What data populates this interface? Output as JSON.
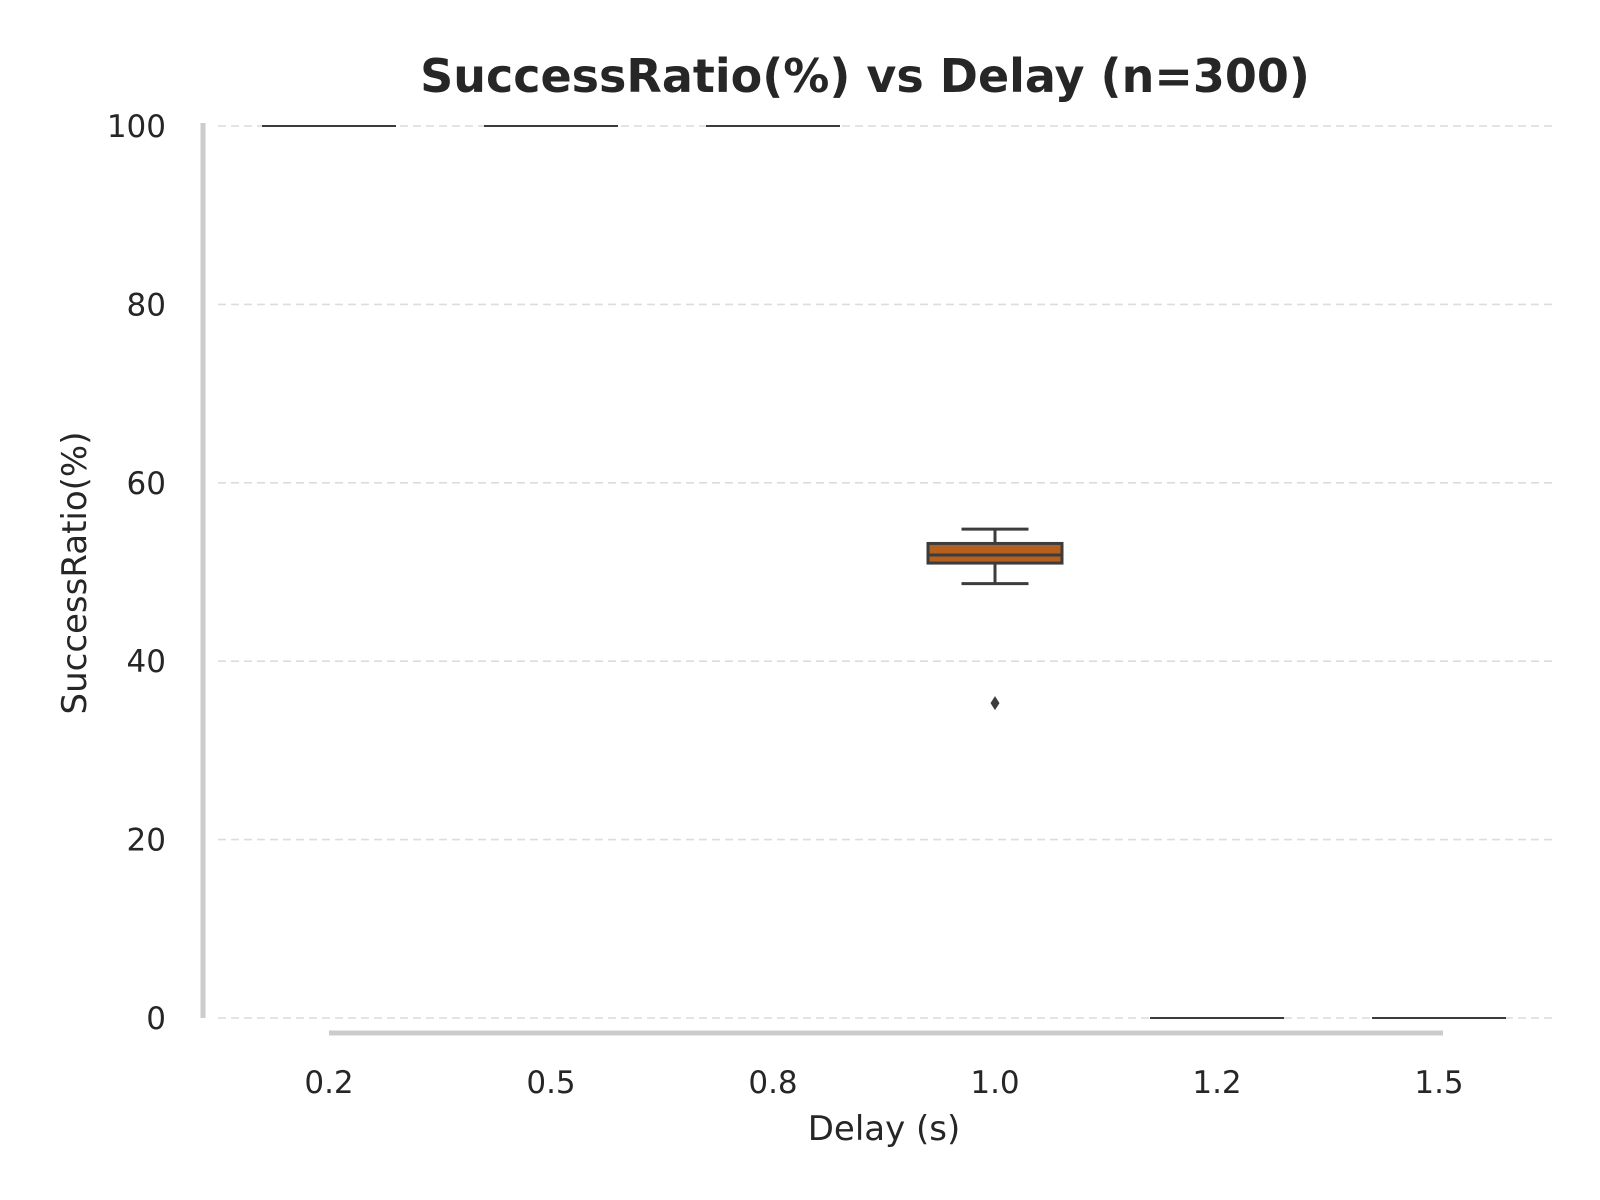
{
  "chart_data": {
    "type": "box",
    "title": "SuccessRatio(%) vs Delay (n=300)",
    "xlabel": "Delay (s)",
    "ylabel": "SuccessRatio(%)",
    "ylim": [
      0,
      100
    ],
    "yticks": [
      0,
      20,
      40,
      60,
      80,
      100
    ],
    "grid": "y-dashed",
    "categories": [
      "0.2",
      "0.5",
      "0.8",
      "1.0",
      "1.2",
      "1.5"
    ],
    "boxes": [
      {
        "category": "0.2",
        "whisker_low": 100,
        "q1": 100,
        "median": 100,
        "q3": 100,
        "whisker_high": 100,
        "outliers": []
      },
      {
        "category": "0.5",
        "whisker_low": 100,
        "q1": 100,
        "median": 100,
        "q3": 100,
        "whisker_high": 100,
        "outliers": []
      },
      {
        "category": "0.8",
        "whisker_low": 100,
        "q1": 100,
        "median": 100,
        "q3": 100,
        "whisker_high": 100,
        "outliers": []
      },
      {
        "category": "1.0",
        "whisker_low": 48.7,
        "q1": 51.0,
        "median": 51.9,
        "q3": 53.2,
        "whisker_high": 54.8,
        "outliers": [
          35.3
        ]
      },
      {
        "category": "1.2",
        "whisker_low": 0,
        "q1": 0,
        "median": 0,
        "q3": 0,
        "whisker_high": 0,
        "outliers": []
      },
      {
        "category": "1.5",
        "whisker_low": 0,
        "q1": 0,
        "median": 0,
        "q3": 0,
        "whisker_high": 0,
        "outliers": []
      }
    ],
    "colors": {
      "box_fill": "#b5601f",
      "box_edge": "#3c3c3c",
      "spine": "#cccccc",
      "grid": "#dcdcdc",
      "text": "#262626"
    }
  }
}
